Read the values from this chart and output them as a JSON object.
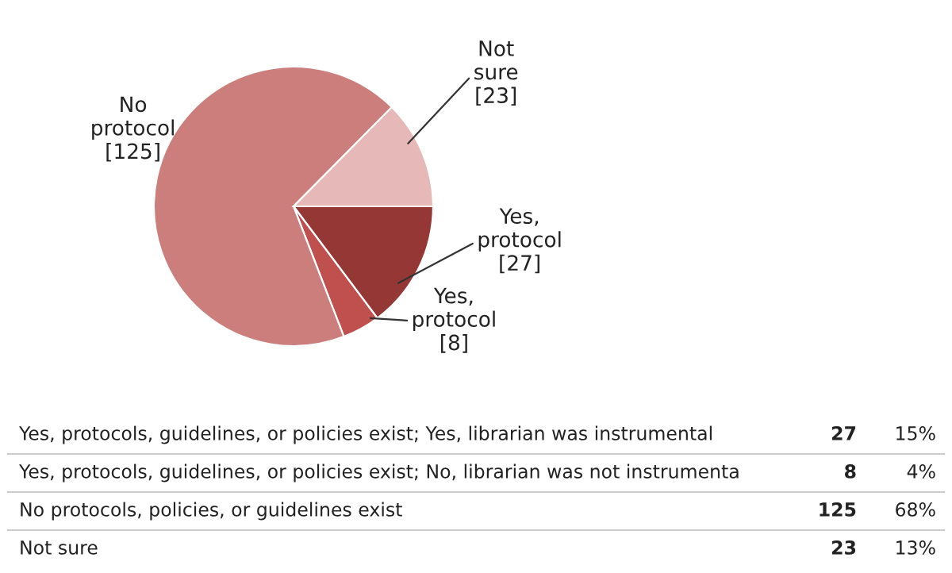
{
  "chart_data": {
    "type": "pie",
    "categories": [
      "Yes, protocol",
      "Yes, protocol",
      "No protocol",
      "Not sure"
    ],
    "values": [
      27,
      8,
      125,
      23
    ],
    "colors": [
      "#953735",
      "#c0504d",
      "#cc7e7d",
      "#e6b9b8"
    ],
    "value_labels": [
      "[27]",
      "[8]",
      "[125]",
      "[23]"
    ],
    "annotations": [
      "Yes, protocols, guidelines, or policies exist; Yes, librarian was instrumental",
      "27",
      "15%",
      "Yes, protocols, guidelines, or policies exist; No, librarian was not instrumenta",
      "8",
      "4%",
      "No protocols, policies, or guidelines exist",
      "125",
      "68%",
      "Not sure",
      "23",
      "13%"
    ]
  }
}
